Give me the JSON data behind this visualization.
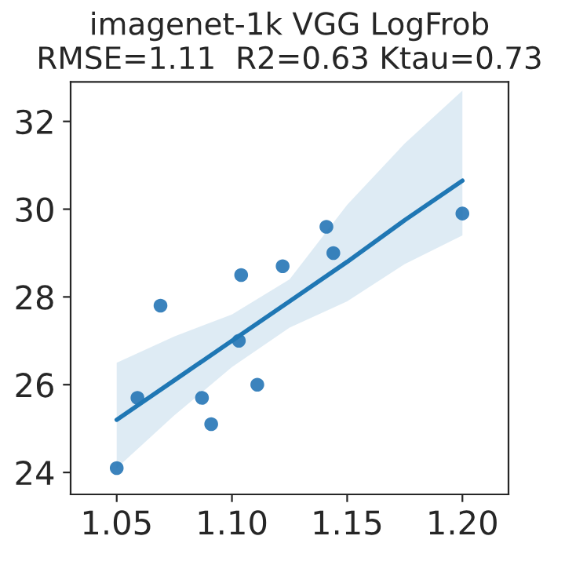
{
  "chart_data": {
    "type": "scatter",
    "title": "imagenet-1k VGG LogFrob\nRMSE=1.11  R2=0.63 Ktau=0.73",
    "x": [
      1.05,
      1.059,
      1.069,
      1.087,
      1.091,
      1.103,
      1.104,
      1.111,
      1.122,
      1.141,
      1.144,
      1.2
    ],
    "series": [
      {
        "color": "#3b83bd",
        "values": [
          24.1,
          25.7,
          27.8,
          25.7,
          25.1,
          27.0,
          28.5,
          26.0,
          28.7,
          29.6,
          29.0,
          29.9
        ]
      },
      {
        "type": "line",
        "marker": "none",
        "color": "#1f77b4",
        "x": [
          1.05,
          1.075,
          1.1,
          1.125,
          1.15,
          1.175,
          1.2
        ],
        "values": [
          25.2,
          26.1,
          27.0,
          27.9,
          28.8,
          29.75,
          30.65
        ],
        "lower": [
          24.1,
          25.3,
          26.4,
          27.3,
          27.9,
          28.75,
          29.4
        ],
        "upper": [
          26.5,
          27.1,
          27.6,
          28.4,
          30.1,
          31.5,
          32.7
        ]
      }
    ],
    "xlim": [
      1.03,
      1.22
    ],
    "ylim": [
      23.5,
      32.9
    ],
    "xticks": [
      {
        "value": 1.05,
        "label": "1.05"
      },
      {
        "value": 1.1,
        "label": "1.10"
      },
      {
        "value": 1.15,
        "label": "1.15"
      },
      {
        "value": 1.2,
        "label": "1.20"
      }
    ],
    "yticks": [
      24,
      26,
      28,
      30,
      32
    ],
    "grid": false,
    "marker": "circle"
  }
}
